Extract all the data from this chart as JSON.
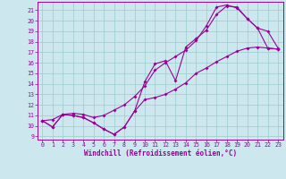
{
  "xlabel": "Windchill (Refroidissement éolien,°C)",
  "background_color": "#cce8ee",
  "grid_color": "#99cccc",
  "line_color": "#990099",
  "xlim": [
    -0.5,
    23.5
  ],
  "ylim": [
    8.7,
    21.8
  ],
  "xticks": [
    0,
    1,
    2,
    3,
    4,
    5,
    6,
    7,
    8,
    9,
    10,
    11,
    12,
    13,
    14,
    15,
    16,
    17,
    18,
    19,
    20,
    21,
    22,
    23
  ],
  "yticks": [
    9,
    10,
    11,
    12,
    13,
    14,
    15,
    16,
    17,
    18,
    19,
    20,
    21
  ],
  "line1_x": [
    0,
    1,
    2,
    3,
    4,
    5,
    6,
    7,
    8,
    9,
    10,
    11,
    12,
    13,
    14,
    15,
    16,
    17,
    18,
    19,
    20,
    21,
    22,
    23
  ],
  "line1_y": [
    10.5,
    9.9,
    11.1,
    11.0,
    10.8,
    10.3,
    9.7,
    9.2,
    9.9,
    11.4,
    14.2,
    15.9,
    16.2,
    14.3,
    17.5,
    18.3,
    19.1,
    20.6,
    21.4,
    21.3,
    20.2,
    19.3,
    19.0,
    17.4
  ],
  "line2_x": [
    0,
    1,
    2,
    3,
    4,
    5,
    6,
    7,
    8,
    9,
    10,
    11,
    12,
    13,
    14,
    15,
    16,
    17,
    18,
    19,
    20,
    21,
    22,
    23
  ],
  "line2_y": [
    10.5,
    9.9,
    11.1,
    11.0,
    10.8,
    10.3,
    9.7,
    9.2,
    9.9,
    11.4,
    12.5,
    12.7,
    13.0,
    13.5,
    14.1,
    15.0,
    15.5,
    16.1,
    16.6,
    17.1,
    17.4,
    17.5,
    17.4,
    17.3
  ],
  "line3_x": [
    0,
    1,
    2,
    3,
    4,
    5,
    6,
    7,
    8,
    9,
    10,
    11,
    12,
    13,
    14,
    15,
    16,
    17,
    18,
    19,
    20,
    21,
    22,
    23
  ],
  "line3_y": [
    10.5,
    10.6,
    11.1,
    11.2,
    11.1,
    10.8,
    11.0,
    11.5,
    12.0,
    12.8,
    13.8,
    15.3,
    16.0,
    16.6,
    17.2,
    18.1,
    19.5,
    21.3,
    21.5,
    21.2,
    20.2,
    19.3,
    17.4,
    17.3
  ]
}
